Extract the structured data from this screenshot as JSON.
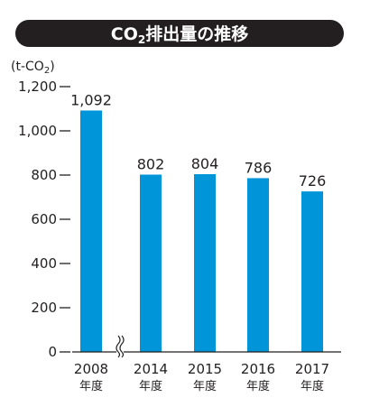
{
  "chart_data": {
    "type": "bar",
    "title_main": "CO",
    "title_sub": "2",
    "title_rest": "排出量の推移",
    "unit_prefix": "(t-CO",
    "unit_sub": "2",
    "unit_suffix": ")",
    "categories": [
      "2008",
      "2014",
      "2015",
      "2016",
      "2017"
    ],
    "category_suffix": "年度",
    "values": [
      1092,
      802,
      804,
      786,
      726
    ],
    "value_labels": [
      "1,092",
      "802",
      "804",
      "786",
      "726"
    ],
    "yticks": [
      0,
      200,
      400,
      600,
      800,
      1000,
      1200
    ],
    "ytick_labels": [
      "0",
      "200",
      "400",
      "600",
      "800",
      "1,000",
      "1,200"
    ],
    "ylim": [
      0,
      1200
    ],
    "axis_break_after_index": 0,
    "grid": false,
    "bar_color": "#0095d9",
    "title_bar_color": "#231f20"
  }
}
